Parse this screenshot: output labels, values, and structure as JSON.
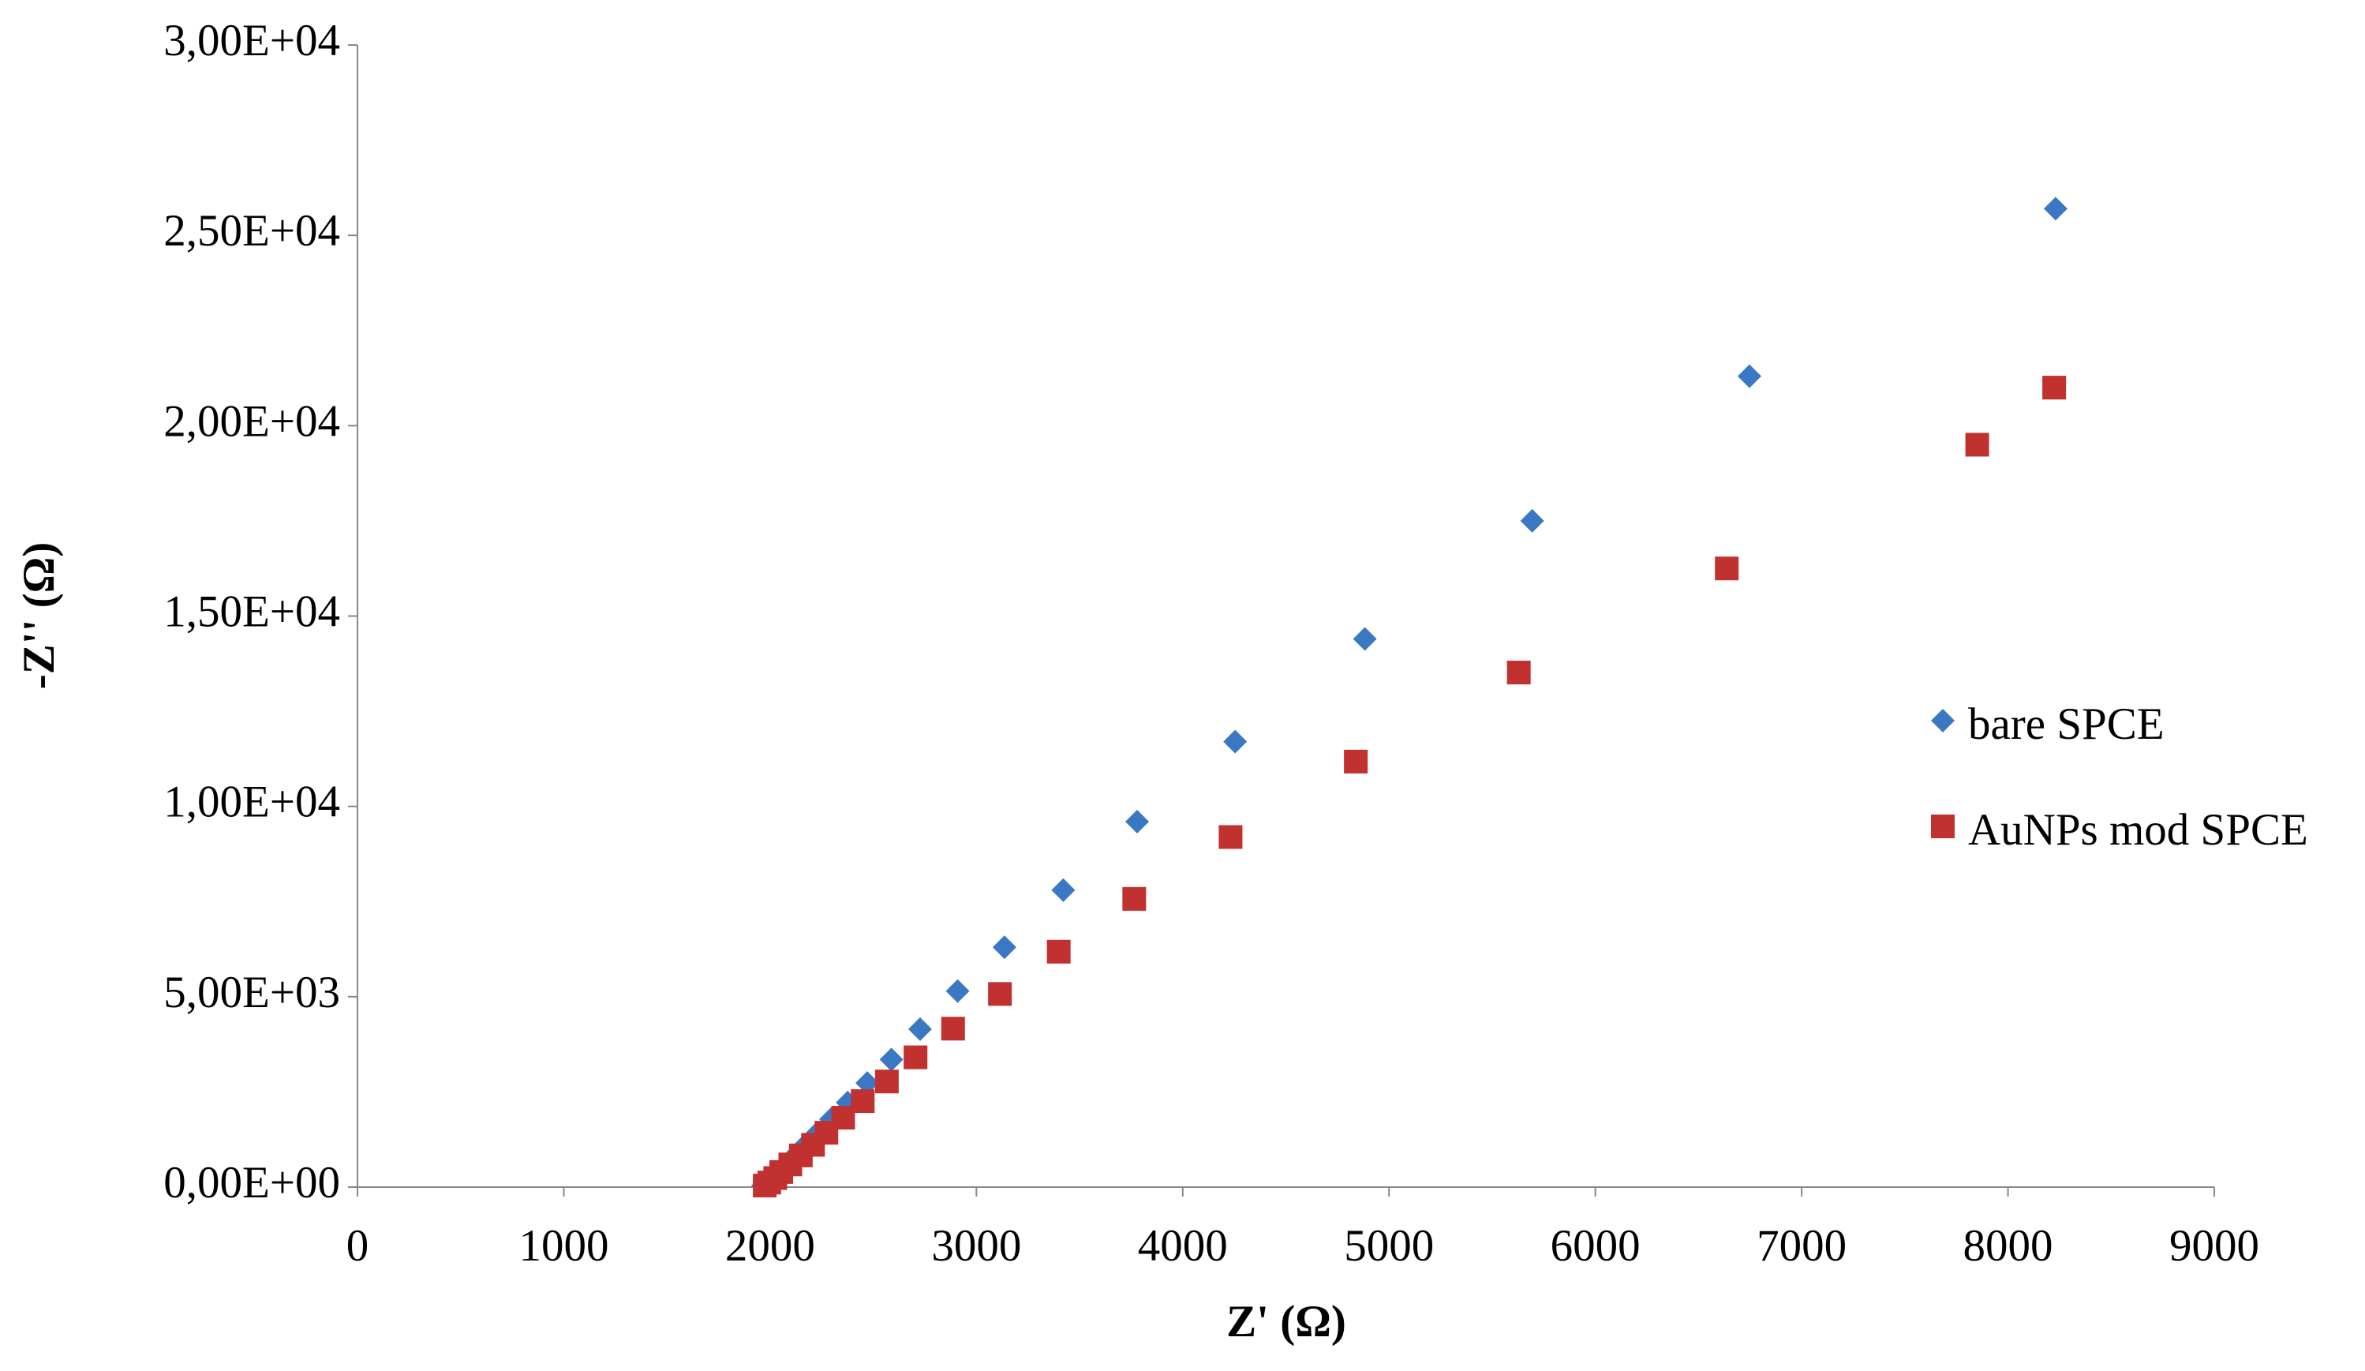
{
  "chart_data": {
    "type": "scatter",
    "x_label": "Z' (Ω)",
    "y_label": "-Z'' (Ω)",
    "xlim": [
      0,
      9000
    ],
    "xticks": [
      0,
      1000,
      2000,
      3000,
      4000,
      5000,
      6000,
      7000,
      8000,
      9000
    ],
    "ylim": [
      0,
      30000
    ],
    "yticks": [
      {
        "value": 0,
        "label": "0,00E+00"
      },
      {
        "value": 5000,
        "label": "5,00E+03"
      },
      {
        "value": 10000,
        "label": "1,00E+04"
      },
      {
        "value": 15000,
        "label": "1,50E+04"
      },
      {
        "value": 20000,
        "label": "2,00E+04"
      },
      {
        "value": 25000,
        "label": "2,50E+04"
      },
      {
        "value": 30000,
        "label": "3,00E+04"
      }
    ],
    "legend": "right",
    "series": [
      {
        "name": "bare SPCE",
        "color": "#3b78c4",
        "marker": "diamond",
        "x": [
          8231,
          6747,
          5694,
          4883,
          4254,
          3779,
          3421,
          3136,
          2909,
          2727,
          2588,
          2471,
          2376,
          2295,
          2230,
          2171,
          2120,
          2076,
          2040,
          2010,
          1981,
          1966
        ],
        "values": [
          25700,
          21300,
          17500,
          14400,
          11700,
          9600,
          7800,
          6300,
          5150,
          4150,
          3350,
          2735,
          2220,
          1784,
          1427,
          1110,
          832,
          595,
          396,
          238,
          119,
          40
        ]
      },
      {
        "name": "AuNPs mod SPCE",
        "color": "#c0312f",
        "marker": "square",
        "x": [
          8224,
          7851,
          6637,
          5629,
          4839,
          4232,
          3765,
          3399,
          3114,
          2887,
          2705,
          2566,
          2449,
          2354,
          2273,
          2208,
          2149,
          2098,
          2054,
          2025,
          1996,
          1974
        ],
        "values": [
          21000,
          19500,
          16250,
          13516,
          11177,
          9195,
          7570,
          6183,
          5073,
          4162,
          3409,
          2774,
          2259,
          1823,
          1427,
          1110,
          832,
          595,
          396,
          238,
          119,
          40
        ]
      }
    ]
  }
}
